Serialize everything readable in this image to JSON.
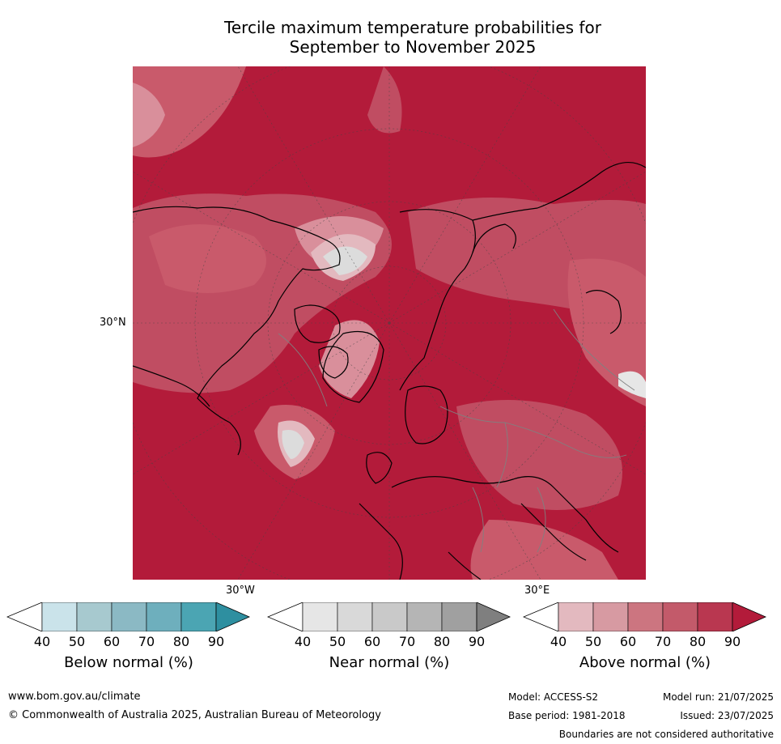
{
  "title_line1": "Tercile maximum temperature probabilities for",
  "title_line2": "September to November 2025",
  "map": {
    "lat_label": "30°N",
    "lon_label_left": "30°W",
    "lon_label_right": "30°E",
    "fill_color_high": "#b31b3a"
  },
  "colorbars": [
    {
      "title": "Below normal (%)",
      "ticks": [
        "40",
        "50",
        "60",
        "70",
        "80",
        "90"
      ],
      "colors": [
        "#ffffff",
        "#cae3ea",
        "#a7c9cf",
        "#8bb9c4",
        "#6eafbd",
        "#4ba5b3",
        "#2e8fa0"
      ]
    },
    {
      "title": "Near normal (%)",
      "ticks": [
        "40",
        "50",
        "60",
        "70",
        "80",
        "90"
      ],
      "colors": [
        "#ffffff",
        "#e6e6e6",
        "#d9d9d9",
        "#c9c9c9",
        "#b5b5b5",
        "#a0a0a0",
        "#7f7f7f"
      ]
    },
    {
      "title": "Above normal (%)",
      "ticks": [
        "40",
        "50",
        "60",
        "70",
        "80",
        "90"
      ],
      "colors": [
        "#ffffff",
        "#e3b9bf",
        "#d79aa2",
        "#cc7580",
        "#c35a6a",
        "#b93750",
        "#b31b3a"
      ]
    }
  ],
  "footer": {
    "url": "www.bom.gov.au/climate",
    "copyright": "© Commonwealth of Australia 2025, Australian Bureau of Meteorology",
    "model": "Model: ACCESS-S2",
    "model_run": "Model run: 21/07/2025",
    "base_period": "Base period: 1981-2018",
    "issued": "Issued: 23/07/2025",
    "disclaimer": "Boundaries are not considered authoritative"
  }
}
